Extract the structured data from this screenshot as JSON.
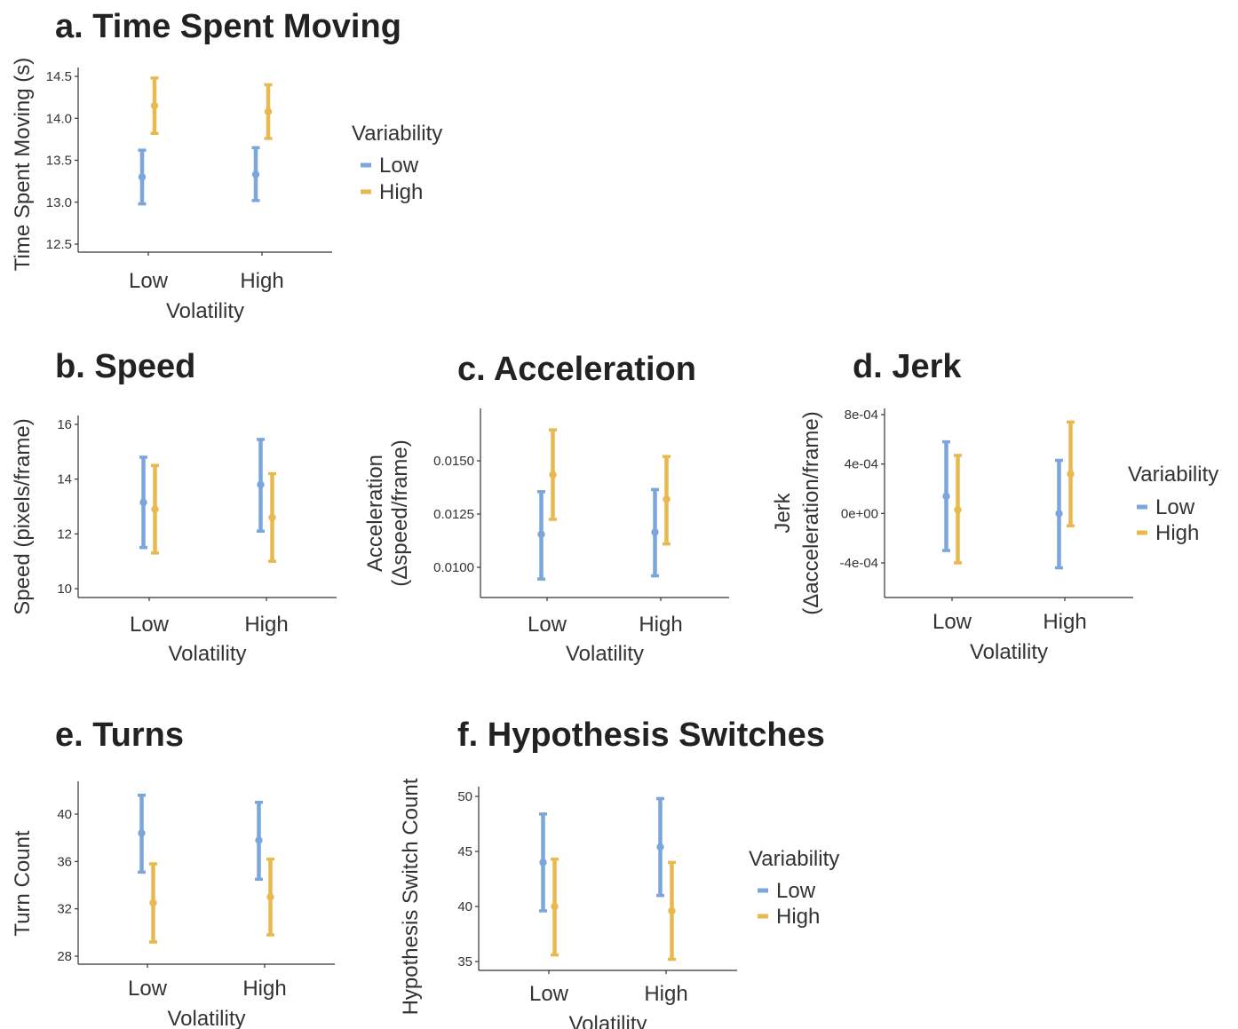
{
  "colors": {
    "Low": "#7aa6db",
    "High": "#e8b94f",
    "axis": "#333333",
    "text": "#333333"
  },
  "chart_data": [
    {
      "id": "a",
      "type": "errorbar",
      "title": "a. Time Spent Moving",
      "xlabel": "Volatility",
      "ylabel": "Time Spent Moving (s)",
      "categories": [
        "Low",
        "High"
      ],
      "yticks": [
        12.5,
        13.0,
        13.5,
        14.0,
        14.5
      ],
      "tick_labels": [
        "12.5",
        "13.0",
        "13.5",
        "14.0",
        "14.5"
      ],
      "series": [
        {
          "name": "Low",
          "mean": [
            13.3,
            13.33
          ],
          "lower": [
            12.98,
            13.02
          ],
          "upper": [
            13.62,
            13.65
          ]
        },
        {
          "name": "High",
          "mean": [
            14.15,
            14.08
          ],
          "lower": [
            13.82,
            13.76
          ],
          "upper": [
            14.48,
            14.4
          ]
        }
      ],
      "legend": {
        "title": "Variability",
        "entries": [
          "Low",
          "High"
        ]
      }
    },
    {
      "id": "b",
      "type": "errorbar",
      "title": "b. Speed",
      "xlabel": "Volatility",
      "ylabel": "Speed (pixels/frame)",
      "categories": [
        "Low",
        "High"
      ],
      "yticks": [
        10,
        12,
        14,
        16
      ],
      "tick_labels": [
        "10",
        "12",
        "14",
        "16"
      ],
      "series": [
        {
          "name": "Low",
          "mean": [
            13.15,
            13.8
          ],
          "lower": [
            11.5,
            12.1
          ],
          "upper": [
            14.8,
            15.45
          ]
        },
        {
          "name": "High",
          "mean": [
            12.9,
            12.6
          ],
          "lower": [
            11.3,
            11.0
          ],
          "upper": [
            14.5,
            14.2
          ]
        }
      ]
    },
    {
      "id": "c",
      "type": "errorbar",
      "title": "c. Acceleration",
      "xlabel": "Volatility",
      "ylabel": [
        "Acceleration",
        "(Δspeed/frame)"
      ],
      "categories": [
        "Low",
        "High"
      ],
      "yticks": [
        0.01,
        0.0125,
        0.015
      ],
      "tick_labels": [
        "0.0100",
        "0.0125",
        "0.0150"
      ],
      "series": [
        {
          "name": "Low",
          "mean": [
            0.01155,
            0.01165
          ],
          "lower": [
            0.00945,
            0.0096
          ],
          "upper": [
            0.01355,
            0.01365
          ]
        },
        {
          "name": "High",
          "mean": [
            0.01435,
            0.0132
          ],
          "lower": [
            0.01225,
            0.0111
          ],
          "upper": [
            0.01645,
            0.0152
          ]
        }
      ]
    },
    {
      "id": "d",
      "type": "errorbar",
      "title": "d. Jerk",
      "xlabel": "Volatility",
      "ylabel": [
        "Jerk",
        "(Δacceleration/frame)"
      ],
      "categories": [
        "Low",
        "High"
      ],
      "yticks": [
        -0.0004,
        0,
        0.0004,
        0.0008
      ],
      "tick_labels": [
        "-4e-04",
        "0e+00",
        "4e-04",
        "8e-04"
      ],
      "series": [
        {
          "name": "Low",
          "mean": [
            0.00014,
            0.0
          ],
          "lower": [
            -0.0003,
            -0.00044
          ],
          "upper": [
            0.00058,
            0.00043
          ]
        },
        {
          "name": "High",
          "mean": [
            3e-05,
            0.00032
          ],
          "lower": [
            -0.0004,
            -0.0001
          ],
          "upper": [
            0.00047,
            0.00074
          ]
        }
      ],
      "legend": {
        "title": "Variability",
        "entries": [
          "Low",
          "High"
        ]
      }
    },
    {
      "id": "e",
      "type": "errorbar",
      "title": "e. Turns",
      "xlabel": "Volatility",
      "ylabel": "Turn Count",
      "categories": [
        "Low",
        "High"
      ],
      "yticks": [
        28,
        32,
        36,
        40
      ],
      "tick_labels": [
        "28",
        "32",
        "36",
        "40"
      ],
      "series": [
        {
          "name": "Low",
          "mean": [
            38.4,
            37.8
          ],
          "lower": [
            35.1,
            34.5
          ],
          "upper": [
            41.6,
            41.0
          ]
        },
        {
          "name": "High",
          "mean": [
            32.5,
            33.0
          ],
          "lower": [
            29.2,
            29.8
          ],
          "upper": [
            35.8,
            36.2
          ]
        }
      ]
    },
    {
      "id": "f",
      "type": "errorbar",
      "title": "f. Hypothesis Switches",
      "xlabel": "Volatility",
      "ylabel": "Hypothesis Switch Count",
      "categories": [
        "Low",
        "High"
      ],
      "yticks": [
        35,
        40,
        45,
        50
      ],
      "tick_labels": [
        "35",
        "40",
        "45",
        "50"
      ],
      "series": [
        {
          "name": "Low",
          "mean": [
            44.0,
            45.4
          ],
          "lower": [
            39.6,
            41.0
          ],
          "upper": [
            48.4,
            49.8
          ]
        },
        {
          "name": "High",
          "mean": [
            40.0,
            39.6
          ],
          "lower": [
            35.6,
            35.2
          ],
          "upper": [
            44.3,
            44.0
          ]
        }
      ],
      "legend": {
        "title": "Variability",
        "entries": [
          "Low",
          "High"
        ]
      }
    }
  ]
}
